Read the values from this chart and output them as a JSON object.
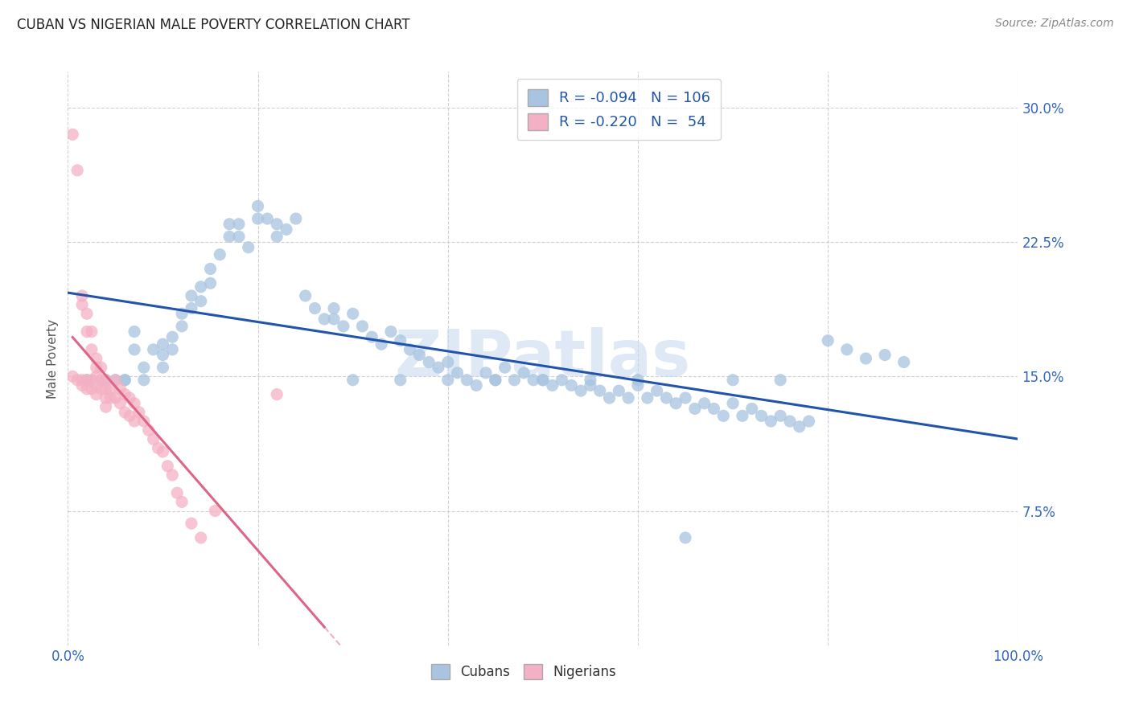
{
  "title": "CUBAN VS NIGERIAN MALE POVERTY CORRELATION CHART",
  "source": "Source: ZipAtlas.com",
  "ylabel": "Male Poverty",
  "xlim": [
    0,
    1.0
  ],
  "ylim": [
    0.0,
    0.32
  ],
  "yticks": [
    0.075,
    0.15,
    0.225,
    0.3
  ],
  "ytick_labels": [
    "7.5%",
    "15.0%",
    "22.5%",
    "30.0%"
  ],
  "legend_labels": [
    "R = -0.094   N = 106",
    "R = -0.220   N =  54"
  ],
  "cubans_color": "#a8c4e0",
  "nigerians_color": "#f4b0c4",
  "trend_cuban_color": "#2255aa",
  "trend_nigerian_color": "#dd6688",
  "watermark": "ZIPatlas",
  "cubans_x": [
    0.02,
    0.04,
    0.05,
    0.06,
    0.06,
    0.07,
    0.07,
    0.08,
    0.08,
    0.09,
    0.1,
    0.1,
    0.1,
    0.11,
    0.11,
    0.12,
    0.12,
    0.13,
    0.13,
    0.14,
    0.14,
    0.15,
    0.15,
    0.16,
    0.17,
    0.17,
    0.18,
    0.18,
    0.19,
    0.2,
    0.2,
    0.21,
    0.22,
    0.22,
    0.23,
    0.24,
    0.25,
    0.26,
    0.27,
    0.28,
    0.28,
    0.29,
    0.3,
    0.31,
    0.32,
    0.33,
    0.34,
    0.35,
    0.36,
    0.37,
    0.38,
    0.39,
    0.4,
    0.41,
    0.42,
    0.43,
    0.44,
    0.45,
    0.46,
    0.47,
    0.48,
    0.49,
    0.5,
    0.51,
    0.52,
    0.53,
    0.54,
    0.55,
    0.56,
    0.57,
    0.58,
    0.59,
    0.6,
    0.61,
    0.62,
    0.63,
    0.64,
    0.65,
    0.66,
    0.67,
    0.68,
    0.69,
    0.7,
    0.71,
    0.72,
    0.73,
    0.74,
    0.75,
    0.76,
    0.77,
    0.78,
    0.8,
    0.82,
    0.84,
    0.86,
    0.88,
    0.65,
    0.7,
    0.75,
    0.5,
    0.55,
    0.45,
    0.35,
    0.6,
    0.4,
    0.3
  ],
  "cubans_y": [
    0.148,
    0.148,
    0.148,
    0.148,
    0.148,
    0.175,
    0.165,
    0.155,
    0.148,
    0.165,
    0.168,
    0.162,
    0.155,
    0.172,
    0.165,
    0.185,
    0.178,
    0.195,
    0.188,
    0.2,
    0.192,
    0.21,
    0.202,
    0.218,
    0.235,
    0.228,
    0.235,
    0.228,
    0.222,
    0.245,
    0.238,
    0.238,
    0.235,
    0.228,
    0.232,
    0.238,
    0.195,
    0.188,
    0.182,
    0.188,
    0.182,
    0.178,
    0.185,
    0.178,
    0.172,
    0.168,
    0.175,
    0.17,
    0.165,
    0.162,
    0.158,
    0.155,
    0.158,
    0.152,
    0.148,
    0.145,
    0.152,
    0.148,
    0.155,
    0.148,
    0.152,
    0.148,
    0.148,
    0.145,
    0.148,
    0.145,
    0.142,
    0.145,
    0.142,
    0.138,
    0.142,
    0.138,
    0.145,
    0.138,
    0.142,
    0.138,
    0.135,
    0.138,
    0.132,
    0.135,
    0.132,
    0.128,
    0.135,
    0.128,
    0.132,
    0.128,
    0.125,
    0.128,
    0.125,
    0.122,
    0.125,
    0.17,
    0.165,
    0.16,
    0.162,
    0.158,
    0.06,
    0.148,
    0.148,
    0.148,
    0.148,
    0.148,
    0.148,
    0.148,
    0.148,
    0.148
  ],
  "nigerians_x": [
    0.005,
    0.005,
    0.01,
    0.01,
    0.015,
    0.015,
    0.015,
    0.015,
    0.02,
    0.02,
    0.02,
    0.02,
    0.025,
    0.025,
    0.025,
    0.025,
    0.03,
    0.03,
    0.03,
    0.03,
    0.03,
    0.035,
    0.035,
    0.035,
    0.04,
    0.04,
    0.04,
    0.04,
    0.045,
    0.045,
    0.05,
    0.05,
    0.055,
    0.055,
    0.06,
    0.06,
    0.065,
    0.065,
    0.07,
    0.07,
    0.075,
    0.08,
    0.085,
    0.09,
    0.095,
    0.1,
    0.105,
    0.11,
    0.115,
    0.12,
    0.13,
    0.14,
    0.155,
    0.22
  ],
  "nigerians_y": [
    0.285,
    0.15,
    0.265,
    0.148,
    0.195,
    0.19,
    0.148,
    0.145,
    0.185,
    0.175,
    0.148,
    0.143,
    0.175,
    0.165,
    0.148,
    0.143,
    0.16,
    0.155,
    0.15,
    0.145,
    0.14,
    0.155,
    0.148,
    0.143,
    0.148,
    0.143,
    0.138,
    0.133,
    0.143,
    0.138,
    0.148,
    0.138,
    0.143,
    0.135,
    0.14,
    0.13,
    0.138,
    0.128,
    0.135,
    0.125,
    0.13,
    0.125,
    0.12,
    0.115,
    0.11,
    0.108,
    0.1,
    0.095,
    0.085,
    0.08,
    0.068,
    0.06,
    0.075,
    0.14
  ]
}
